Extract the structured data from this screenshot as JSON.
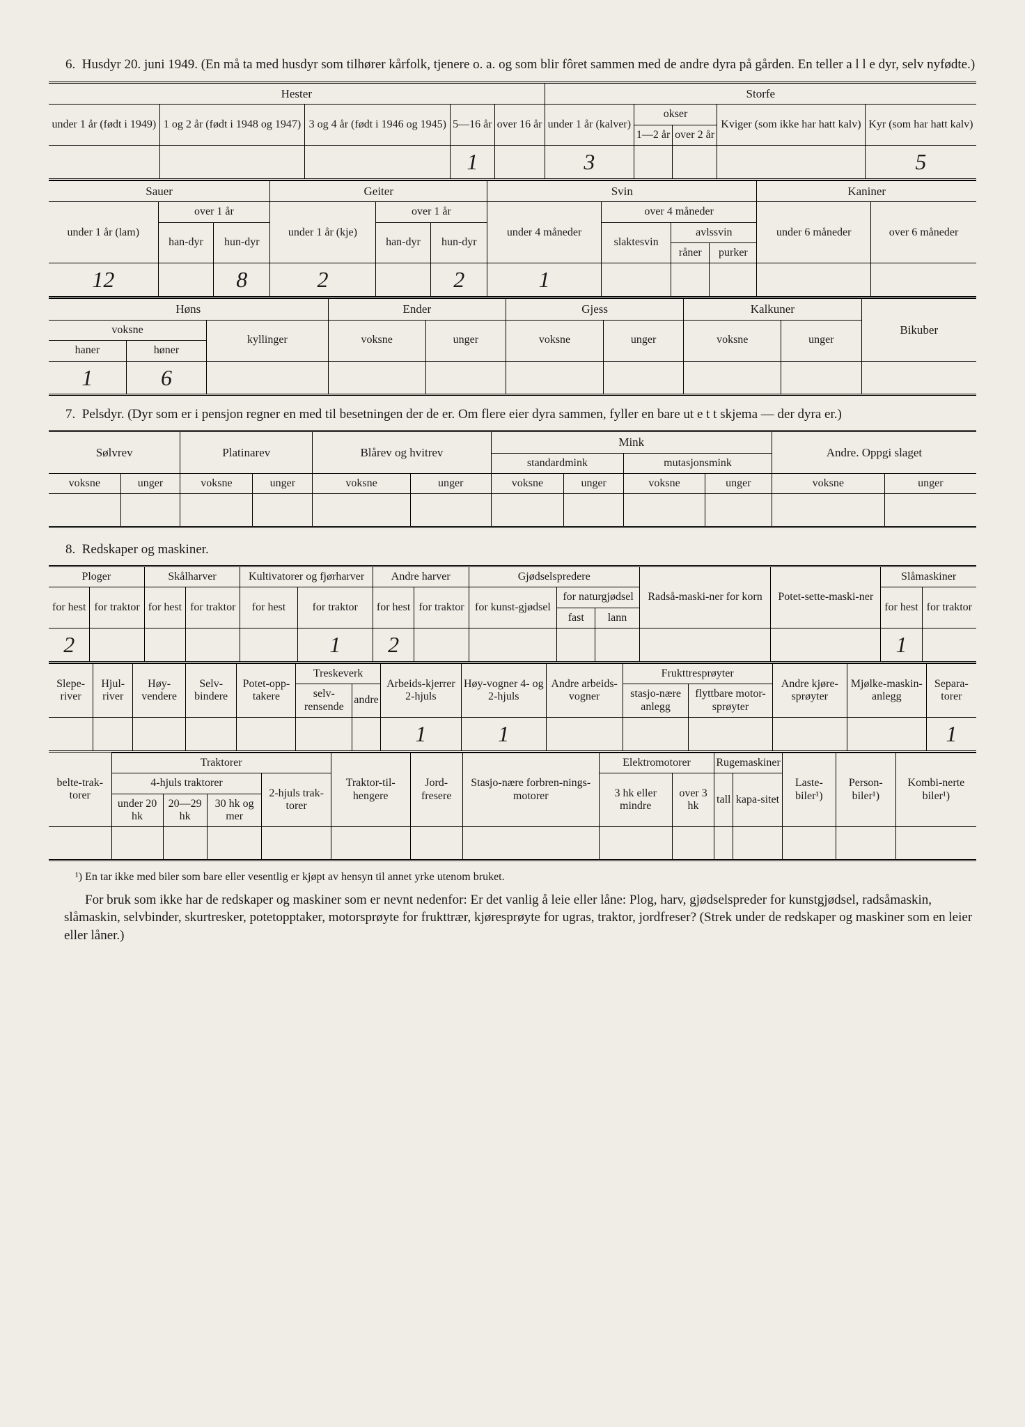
{
  "section6": {
    "number": "6.",
    "text": "Husdyr 20. juni 1949.  (En må ta med husdyr som tilhører kårfolk, tjenere o. a. og som blir fôret sammen med de andre dyra på gården.  En teller a l l e dyr, selv nyfødte.)"
  },
  "tableA": {
    "groups": {
      "hester": "Hester",
      "storfe": "Storfe"
    },
    "cols": {
      "h1": "under 1 år (født i 1949)",
      "h2": "1 og 2 år (født i 1948 og 1947)",
      "h3": "3 og 4 år (født i 1946 og 1945)",
      "h4": "5—16 år",
      "h5": "over 16 år",
      "s1": "under 1 år (kalver)",
      "okser": "okser",
      "s2": "1—2 år",
      "s3": "over 2 år",
      "s4": "Kviger (som ikke har hatt kalv)",
      "s5": "Kyr (som har hatt kalv)"
    },
    "vals": {
      "h4": "1",
      "s1": "3",
      "s5": "5"
    }
  },
  "tableB": {
    "groups": {
      "sauer": "Sauer",
      "geiter": "Geiter",
      "svin": "Svin",
      "kaniner": "Kaniner"
    },
    "cols": {
      "sa1": "under 1 år (lam)",
      "over1ar": "over 1 år",
      "handyr": "han-dyr",
      "hundyr": "hun-dyr",
      "ge1": "under 1 år (kje)",
      "sv1": "under 4 måneder",
      "over4m": "over 4 måneder",
      "slaktesvin": "slaktesvin",
      "avlssvin": "avlssvin",
      "raner": "råner",
      "purker": "purker",
      "ka1": "under 6 måneder",
      "ka2": "over 6 måneder"
    },
    "vals": {
      "sa1": "12",
      "sa_hun": "8",
      "ge1": "2",
      "ge_hun": "2",
      "sv1": "1"
    }
  },
  "tableC": {
    "groups": {
      "hons": "Høns",
      "ender": "Ender",
      "gjess": "Gjess",
      "kalkuner": "Kalkuner",
      "bikuber": "Bikuber"
    },
    "cols": {
      "voksne": "voksne",
      "haner": "haner",
      "honer": "høner",
      "kyllinger": "kyllinger",
      "unger": "unger"
    },
    "vals": {
      "haner": "1",
      "honer": "6"
    }
  },
  "section7": {
    "number": "7.",
    "text": "Pelsdyr.  (Dyr som er i pensjon regner en med til besetningen der de er.  Om flere eier dyra sammen, fyller en bare ut e t t skjema — der dyra er.)"
  },
  "tableD": {
    "groups": {
      "solvrev": "Sølvrev",
      "platinarev": "Platinarev",
      "blarev": "Blårev og hvitrev",
      "mink": "Mink",
      "standardmink": "standardmink",
      "mutasjonsmink": "mutasjonsmink",
      "andre": "Andre. Oppgi slaget"
    },
    "cols": {
      "voksne": "voksne",
      "unger": "unger"
    }
  },
  "section8": {
    "number": "8.",
    "text": "Redskaper og maskiner."
  },
  "tableE": {
    "groups": {
      "ploger": "Ploger",
      "skalharver": "Skålharver",
      "kultivatorer": "Kultivatorer og fjørharver",
      "andreharver": "Andre harver",
      "gjodselspredere": "Gjødselspredere",
      "radsa": "Radså-maski-ner for korn",
      "potet": "Potet-sette-maski-ner",
      "slamaskiner": "Slåmaskiner"
    },
    "cols": {
      "forhest": "for hest",
      "fortraktor": "for traktor",
      "forkunst": "for kunst-gjødsel",
      "fornatur": "for naturgjødsel",
      "fast": "fast",
      "lann": "lann"
    },
    "vals": {
      "plog_hest": "2",
      "kult_traktor": "1",
      "andre_hest": "2",
      "sla_hest": "1"
    }
  },
  "tableF": {
    "cols": {
      "sleperiver": "Slepe-river",
      "hjulriver": "Hjul-river",
      "hoyvendere": "Høy-vendere",
      "selvbindere": "Selv-bindere",
      "potetopp": "Potet-opp-takere",
      "treskeverk": "Treskeverk",
      "selvrensende": "selv-rensende",
      "andre": "andre",
      "arbeidskjerrer": "Arbeids-kjerrer 2-hjuls",
      "hoyvogner": "Høy-vogner 4- og 2-hjuls",
      "andrearbeids": "Andre arbeids-vogner",
      "frukttre": "Frukttresprøyter",
      "stasjo": "stasjo-nære anlegg",
      "flyttbare": "flyttbare motor-sprøyter",
      "andrekjore": "Andre kjøre-sprøyter",
      "mjolke": "Mjølke-maskin-anlegg",
      "separa": "Separa-torer"
    },
    "vals": {
      "arbeidskjerrer": "1",
      "hoyvogner": "1",
      "separa": "1"
    }
  },
  "tableG": {
    "groups": {
      "traktorer": "Traktorer",
      "fjhuls": "4-hjuls traktorer",
      "elektro": "Elektromotorer",
      "ruge": "Rugemaskiner"
    },
    "cols": {
      "belte": "belte-trak-torer",
      "under20": "under 20 hk",
      "hk2029": "20—29 hk",
      "hk30": "30 hk og mer",
      "tohjuls": "2-hjuls trak-torer",
      "traktortil": "Traktor-til-hengere",
      "jordfresere": "Jord-fresere",
      "stasjonare": "Stasjo-nære forbren-nings-motorer",
      "hk3": "3 hk eller mindre",
      "over3hk": "over 3 hk",
      "tall": "tall",
      "kapasitet": "kapa-sitet",
      "lastebiler": "Laste-biler¹)",
      "personbiler": "Person-biler¹)",
      "kombinerte": "Kombi-nerte biler¹)"
    }
  },
  "footnote": "¹) En tar ikke med biler som bare eller vesentlig er kjøpt av hensyn til annet yrke utenom bruket.",
  "para": "For bruk som ikke har de redskaper og maskiner som er nevnt nedenfor:  Er det vanlig å leie eller låne:  Plog, harv, gjødselspreder for kunstgjødsel, radsåmaskin, slåmaskin, selvbinder, skurtresker, potetopptaker, motorsprøyte for frukttrær, kjøresprøyte for ugras, traktor, jordfreser? (Strek under de redskaper og maskiner som en leier eller låner.)",
  "styling": {
    "background": "#f0ede6",
    "text_color": "#1a1a1a",
    "border_color": "#000000",
    "handwriting_color": "#2a2a2a",
    "body_fontsize": 19,
    "table_fontsize": 16,
    "handwriting_fontsize": 32
  }
}
